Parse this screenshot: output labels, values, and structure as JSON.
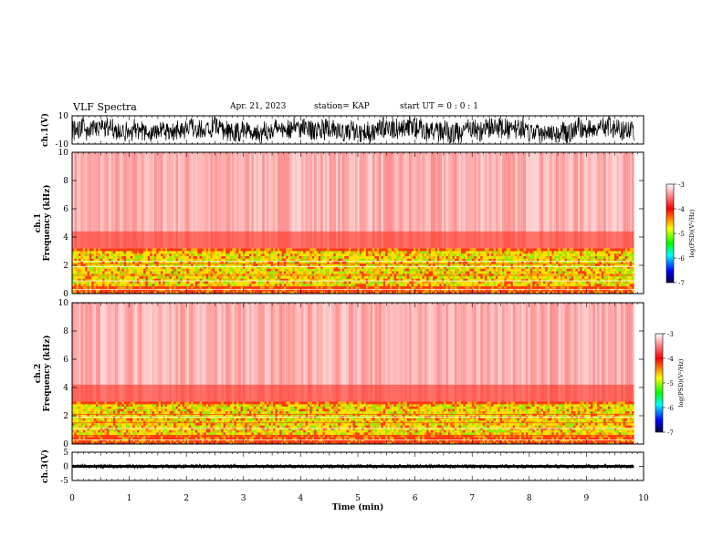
{
  "header": {
    "title": "VLF Spectra",
    "date": "Apr. 21, 2023",
    "station": "station= KAP",
    "start": "start  UT  =   0 : 0  : 1"
  },
  "colors": {
    "axis": "#000000",
    "waveform": "#000000",
    "spectrogram_background": "#ffffff",
    "colormap": [
      "#ffffff",
      "#ff0000",
      "#ffff00",
      "#00ff00",
      "#00ffff",
      "#0000ff",
      "#000040"
    ]
  },
  "chart_data": [
    {
      "type": "line",
      "name": "ch1-waveform",
      "ylabel": "ch.1(V)",
      "ylim": [
        -10,
        10
      ],
      "y_ticks": [
        "10",
        "-10"
      ],
      "xlim": [
        0,
        10
      ],
      "description_level": {
        "mean": 0,
        "amplitude": 8
      }
    },
    {
      "type": "heatmap",
      "name": "ch1-spectrogram",
      "ylabel": "ch.1\nFrequency (kHz)",
      "ylim": [
        0,
        10
      ],
      "y_ticks": [
        "0",
        "2",
        "4",
        "6",
        "8",
        "10"
      ],
      "xlim": [
        0,
        9.83
      ],
      "colorbar": {
        "label": "log(PSD)(V²/Hz)",
        "range": [
          -7,
          -3
        ],
        "ticks": [
          "-3",
          "-4",
          "-5",
          "-6",
          "-7"
        ]
      },
      "bands": [
        {
          "from_khz": 0,
          "to_khz": 3.2,
          "level": -4.6
        },
        {
          "from_khz": 3.2,
          "to_khz": 10,
          "level": -3.4
        }
      ],
      "lines_khz": [
        0.3,
        0.5,
        0.9,
        1.3,
        1.9,
        2.1,
        2.3
      ]
    },
    {
      "type": "heatmap",
      "name": "ch2-spectrogram",
      "ylabel": "ch.2\nFrequency (kHz)",
      "ylim": [
        0,
        10
      ],
      "y_ticks": [
        "0",
        "2",
        "4",
        "6",
        "8",
        "10"
      ],
      "xlim": [
        0,
        9.83
      ],
      "colorbar": {
        "label": "log(PSD)(V²/Hz)",
        "range": [
          -7,
          -3
        ],
        "ticks": [
          "-3",
          "-4",
          "-5",
          "-6",
          "-7"
        ]
      },
      "bands": [
        {
          "from_khz": 0,
          "to_khz": 3.0,
          "level": -4.8
        },
        {
          "from_khz": 3.0,
          "to_khz": 10,
          "level": -3.4
        }
      ],
      "lines_khz": [
        0.3,
        0.6,
        1.1,
        1.5,
        1.9,
        2.1
      ]
    },
    {
      "type": "line",
      "name": "ch3-waveform",
      "ylabel": "ch.3(V)",
      "ylim": [
        -5,
        5
      ],
      "y_ticks": [
        "5",
        "0",
        "-5"
      ],
      "xlim": [
        0,
        9.83
      ],
      "description_level": {
        "mean": 0,
        "amplitude": 0.6
      }
    }
  ],
  "x_axis": {
    "label": "Time (min)",
    "xlim": [
      0,
      10
    ],
    "ticks": [
      "0",
      "1",
      "2",
      "3",
      "4",
      "5",
      "6",
      "7",
      "8",
      "9",
      "10"
    ]
  }
}
